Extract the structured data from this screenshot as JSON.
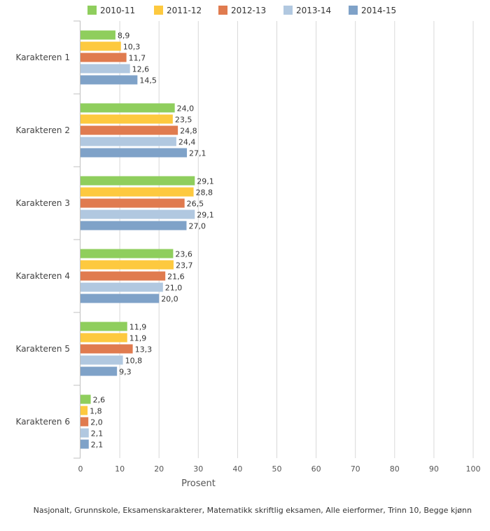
{
  "chart_data": {
    "type": "bar",
    "orientation": "horizontal",
    "categories": [
      "Karakteren 1",
      "Karakteren 2",
      "Karakteren 3",
      "Karakteren 4",
      "Karakteren 5",
      "Karakteren 6"
    ],
    "series": [
      {
        "name": "2010-11",
        "color": "#8fce5d",
        "values": [
          8.9,
          24.0,
          29.1,
          23.6,
          11.9,
          2.6
        ],
        "labels": [
          "8,9",
          "24,0",
          "29,1",
          "23,6",
          "11,9",
          "2,6"
        ]
      },
      {
        "name": "2011-12",
        "color": "#fdc93f",
        "values": [
          10.3,
          23.5,
          28.8,
          23.7,
          11.9,
          1.8
        ],
        "labels": [
          "10,3",
          "23,5",
          "28,8",
          "23,7",
          "11,9",
          "1,8"
        ]
      },
      {
        "name": "2012-13",
        "color": "#e07b4f",
        "values": [
          11.7,
          24.8,
          26.5,
          21.6,
          13.3,
          2.0
        ],
        "labels": [
          "11,7",
          "24,8",
          "26,5",
          "21,6",
          "13,3",
          "2,0"
        ]
      },
      {
        "name": "2013-14",
        "color": "#b1c8e0",
        "values": [
          12.6,
          24.4,
          29.1,
          21.0,
          10.8,
          2.1
        ],
        "labels": [
          "12,6",
          "24,4",
          "29,1",
          "21,0",
          "10,8",
          "2,1"
        ]
      },
      {
        "name": "2014-15",
        "color": "#7fa2c8",
        "values": [
          14.5,
          27.1,
          27.0,
          20.0,
          9.3,
          2.1
        ],
        "labels": [
          "14,5",
          "27,1",
          "27,0",
          "20,0",
          "9,3",
          "2,1"
        ]
      }
    ],
    "xlabel": "Prosent",
    "xlim": [
      0,
      100
    ],
    "xticks": [
      0,
      10,
      20,
      30,
      40,
      50,
      60,
      70,
      80,
      90,
      100
    ],
    "grid": true,
    "legend_position": "top",
    "footer": "Nasjonalt, Grunnskole, Eksamenskarakterer, Matematikk skriftlig eksamen, Alle eierformer, Trinn 10, Begge kjønn"
  }
}
